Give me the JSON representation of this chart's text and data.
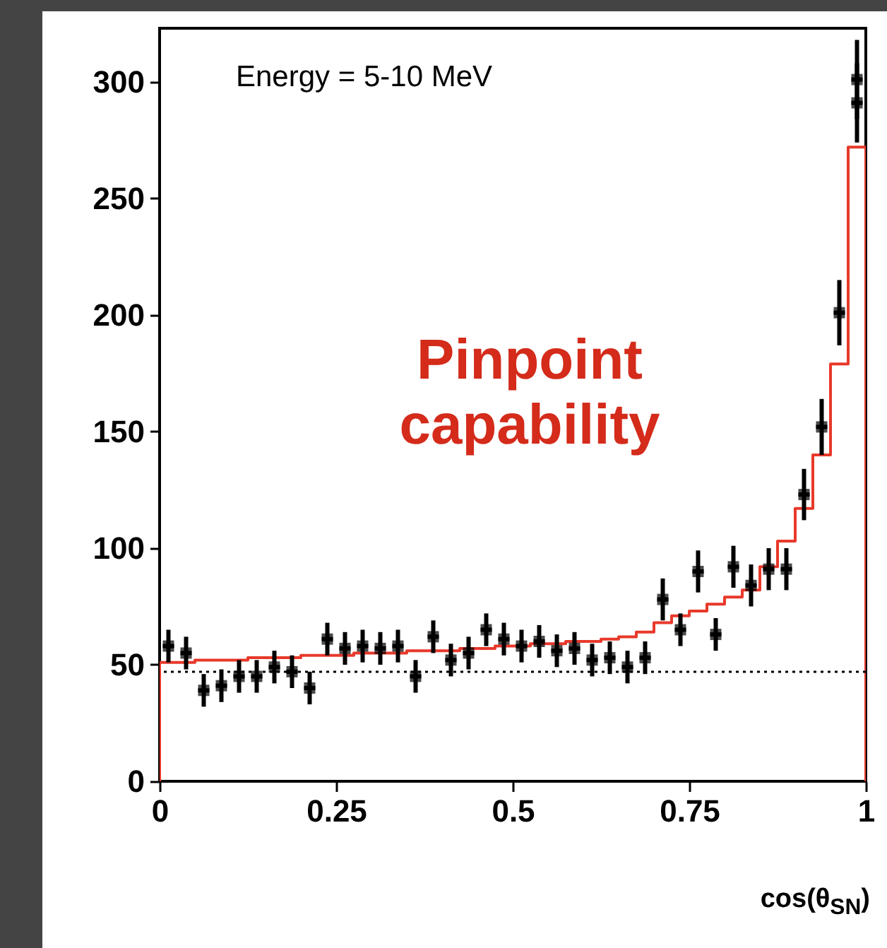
{
  "chart_data": {
    "type": "scatter",
    "xlabel": "cos(θ$_{SN}$)",
    "annotations": [
      "Energy = 5-10 MeV",
      "Pinpoint capability"
    ],
    "xlim": [
      0,
      1
    ],
    "xticks": [
      0,
      0.25,
      0.5,
      0.75,
      1
    ],
    "ylim": [
      0,
      323
    ],
    "yticks": [
      0,
      50,
      100,
      150,
      200,
      250,
      300
    ],
    "grid": false,
    "series": [
      {
        "type": "histogram",
        "color": "#e8392b",
        "line_style": "solid",
        "bins": [
          0,
          0.025,
          0.05,
          0.075,
          0.1,
          0.125,
          0.15,
          0.175,
          0.2,
          0.225,
          0.25,
          0.275,
          0.3,
          0.325,
          0.35,
          0.375,
          0.4,
          0.425,
          0.45,
          0.475,
          0.5,
          0.525,
          0.55,
          0.575,
          0.6,
          0.625,
          0.65,
          0.675,
          0.7,
          0.725,
          0.75,
          0.775,
          0.8,
          0.825,
          0.85,
          0.875,
          0.9,
          0.925,
          0.95,
          0.975,
          1
        ],
        "values": [
          51,
          51,
          52,
          52,
          52,
          53,
          53,
          53,
          54,
          54,
          54,
          55,
          55,
          55,
          56,
          56,
          56,
          57,
          57,
          58,
          58,
          59,
          59,
          60,
          60,
          61,
          62,
          64,
          68,
          71,
          73,
          76,
          79,
          82,
          92,
          103,
          117,
          140,
          179,
          272
        ]
      },
      {
        "color": "#000000",
        "marker": "square",
        "x": [
          0.0125,
          0.0375,
          0.0625,
          0.0875,
          0.1125,
          0.1375,
          0.1625,
          0.1875,
          0.2125,
          0.2375,
          0.2625,
          0.2875,
          0.3125,
          0.3375,
          0.3625,
          0.3875,
          0.4125,
          0.4375,
          0.4625,
          0.4875,
          0.5125,
          0.5375,
          0.5625,
          0.5875,
          0.6125,
          0.6375,
          0.6625,
          0.6875,
          0.7125,
          0.7375,
          0.7625,
          0.7875,
          0.8125,
          0.8375,
          0.8625,
          0.8875,
          0.9125,
          0.9375,
          0.9625,
          0.9875,
          0.9875
        ],
        "values": [
          58,
          55,
          39,
          41,
          45,
          45,
          49,
          47,
          40,
          61,
          57,
          58,
          57,
          58,
          45,
          62,
          52,
          55,
          65,
          61,
          58,
          60,
          56,
          57,
          52,
          53,
          49,
          53,
          78,
          65,
          90,
          63,
          92,
          84,
          91,
          91,
          123,
          152,
          201,
          291,
          301
        ],
        "errors": [
          7,
          7,
          7,
          7,
          7,
          7,
          7,
          7,
          7,
          7,
          7,
          7,
          7,
          7,
          7,
          7,
          7,
          7,
          7,
          7,
          7,
          7,
          7,
          7,
          7,
          7,
          7,
          7,
          9,
          7,
          9,
          7,
          9,
          9,
          9,
          9,
          11,
          12,
          14,
          17,
          17
        ],
        "xerrors": [
          0.008,
          0.008,
          0.008,
          0.008,
          0.008,
          0.008,
          0.008,
          0.008,
          0.008,
          0.008,
          0.008,
          0.008,
          0.008,
          0.008,
          0.008,
          0.008,
          0.008,
          0.008,
          0.008,
          0.008,
          0.008,
          0.008,
          0.008,
          0.008,
          0.008,
          0.008,
          0.008,
          0.008,
          0.008,
          0.008,
          0.008,
          0.008,
          0.008,
          0.008,
          0.008,
          0.008,
          0.008,
          0.008,
          0.008,
          0.008,
          0.008
        ]
      }
    ],
    "ref_lines": [
      {
        "axis": "y",
        "value": 47,
        "color": "#000000",
        "line_style": "dotted"
      }
    ]
  }
}
